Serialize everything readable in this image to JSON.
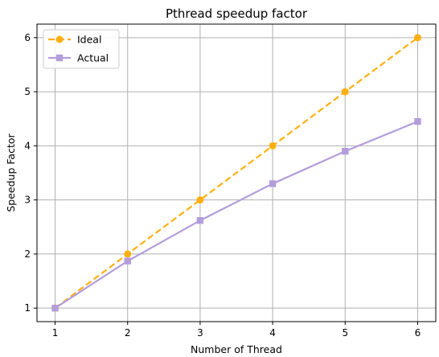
{
  "chart_data": {
    "type": "line",
    "title": "Pthread speedup factor",
    "xlabel": "Number of Thread",
    "ylabel": "Speedup Factor",
    "x": [
      1,
      2,
      3,
      4,
      5,
      6
    ],
    "xlim": [
      0.75,
      6.25
    ],
    "ylim": [
      0.75,
      6.25
    ],
    "xticks": [
      "1",
      "2",
      "3",
      "4",
      "5",
      "6"
    ],
    "yticks": [
      "1",
      "2",
      "3",
      "4",
      "5",
      "6"
    ],
    "grid": true,
    "legend_position": "top-left",
    "series": [
      {
        "name": "Ideal",
        "values": [
          1,
          2,
          3,
          4,
          5,
          6
        ],
        "color": "#ffb010",
        "marker": "circle",
        "line_style": "dashed"
      },
      {
        "name": "Actual",
        "values": [
          1,
          1.87,
          2.62,
          3.3,
          3.9,
          4.45
        ],
        "color": "#b39ddb",
        "marker": "square",
        "line_style": "solid"
      }
    ]
  }
}
